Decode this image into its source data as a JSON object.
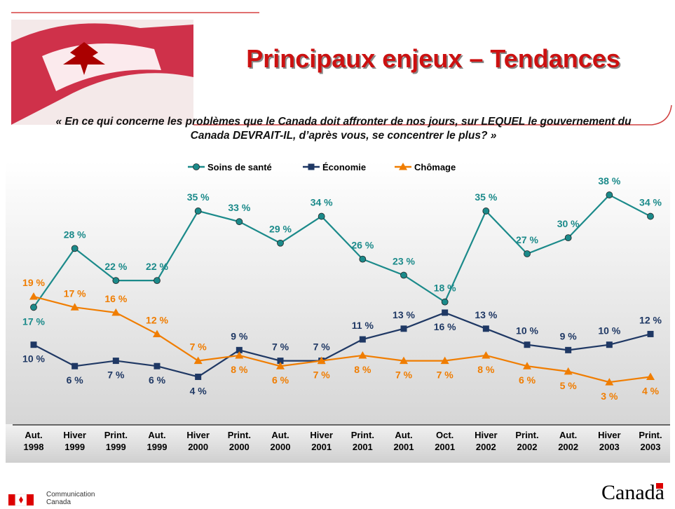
{
  "header": {
    "title": "Principaux enjeux – Tendances",
    "question": "« En ce qui concerne les problèmes que le Canada doit affronter de nos jours, sur LEQUEL le gouvernement du Canada DEVRAIT-IL, d’après vous, se concentrer le plus? »"
  },
  "chart_data": {
    "type": "line",
    "categories": [
      "Aut. 1998",
      "Hiver 1999",
      "Print. 1999",
      "Aut. 1999",
      "Hiver 2000",
      "Print. 2000",
      "Aut. 2000",
      "Hiver 2001",
      "Print. 2001",
      "Aut. 2001",
      "Oct. 2001",
      "Hiver 2002",
      "Print. 2002",
      "Aut. 2002",
      "Hiver 2003",
      "Print. 2003"
    ],
    "series": [
      {
        "name": "Soins de santé",
        "color": "#1b8a8a",
        "marker": "circle",
        "values": [
          17,
          28,
          22,
          22,
          35,
          33,
          29,
          34,
          26,
          23,
          18,
          35,
          27,
          30,
          38,
          34
        ],
        "value_labels": [
          "17 %",
          "28 %",
          "22 %",
          "22 %",
          "35 %",
          "33 %",
          "29 %",
          "34 %",
          "26 %",
          "23 %",
          "18 %",
          "35 %",
          "27 %",
          "30 %",
          "38 %",
          "34 %"
        ]
      },
      {
        "name": "Économie",
        "color": "#1f3864",
        "marker": "square",
        "values": [
          10,
          6,
          7,
          6,
          4,
          9,
          7,
          7,
          11,
          13,
          16,
          13,
          10,
          9,
          10,
          12
        ],
        "value_labels": [
          "10 %",
          "6 %",
          "7 %",
          "6 %",
          "4 %",
          "9 %",
          "7 %",
          "7 %",
          "11 %",
          "13 %",
          "16 %",
          "13 %",
          "10 %",
          "9 %",
          "10 %",
          "12 %"
        ]
      },
      {
        "name": "Chômage",
        "color": "#f07d00",
        "marker": "triangle",
        "values": [
          19,
          17,
          16,
          12,
          7,
          8,
          6,
          7,
          8,
          7,
          7,
          8,
          6,
          5,
          3,
          4
        ],
        "value_labels": [
          "19 %",
          "17 %",
          "16 %",
          "12 %",
          "7 %",
          "8 %",
          "6 %",
          "7 %",
          "8 %",
          "7 %",
          "7 %",
          "8 %",
          "6 %",
          "5 %",
          "3 %",
          "4 %"
        ]
      }
    ],
    "legend": "top"
  },
  "footer": {
    "department": "Communication Canada",
    "wordmark": "Canada"
  }
}
